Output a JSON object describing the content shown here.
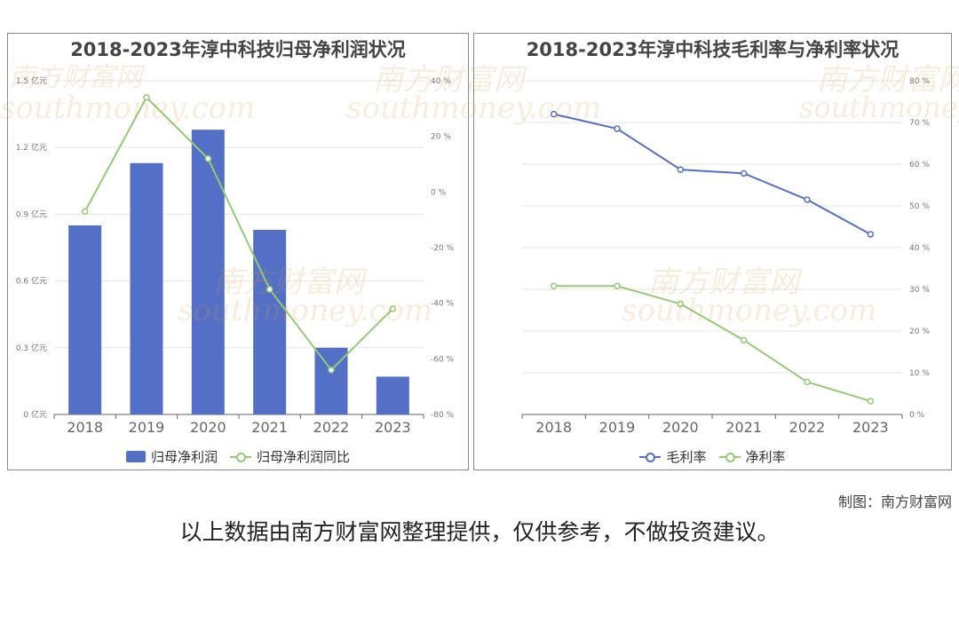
{
  "footer": {
    "credit": "制图：南方财富网",
    "disclaimer": "以上数据由南方财富网整理提供，仅供参考，不做投资建议。"
  },
  "watermark": {
    "cn": "南方财富网",
    "en": "southmoney.com"
  },
  "colors": {
    "bar": "#5470c6",
    "line_green": "#91cc75",
    "line_blue": "#5470c6",
    "grid": "#e6e6e6",
    "axis": "#666666"
  },
  "chart_data": [
    {
      "type": "bar",
      "title": "2018-2023年淳中科技归母净利润状况",
      "categories": [
        "2018",
        "2019",
        "2020",
        "2021",
        "2022",
        "2023"
      ],
      "y_left_ticks": [
        "0 亿元",
        "0.3 亿元",
        "0.6 亿元",
        "0.9 亿元",
        "1.2 亿元",
        "1.5 亿元"
      ],
      "y_right_ticks": [
        "-80 %",
        "-60 %",
        "-40 %",
        "-20 %",
        "0 %",
        "20 %",
        "40 %"
      ],
      "ylim_left": [
        0,
        1.5
      ],
      "ylim_right": [
        -80,
        40
      ],
      "series": [
        {
          "name": "归母净利润",
          "type": "bar",
          "axis": "left",
          "values": [
            0.85,
            1.13,
            1.28,
            0.83,
            0.3,
            0.17
          ]
        },
        {
          "name": "归母净利润同比",
          "type": "line",
          "axis": "right",
          "values": [
            -7,
            34,
            12,
            -35,
            -64,
            -42
          ]
        }
      ],
      "grid": true,
      "legend": "bottom-center"
    },
    {
      "type": "line",
      "title": "2018-2023年淳中科技毛利率与净利率状况",
      "categories": [
        "2018",
        "2019",
        "2020",
        "2021",
        "2022",
        "2023"
      ],
      "y_right_ticks": [
        "0 %",
        "10 %",
        "20 %",
        "30 %",
        "40 %",
        "50 %",
        "60 %",
        "70 %",
        "80 %"
      ],
      "ylim": [
        0,
        80
      ],
      "series": [
        {
          "name": "毛利率",
          "values": [
            72.0,
            68.5,
            58.7,
            57.8,
            51.5,
            43.2
          ]
        },
        {
          "name": "净利率",
          "values": [
            30.8,
            30.8,
            26.5,
            17.8,
            7.8,
            3.2
          ]
        }
      ],
      "grid": true,
      "legend": "bottom-center"
    }
  ]
}
